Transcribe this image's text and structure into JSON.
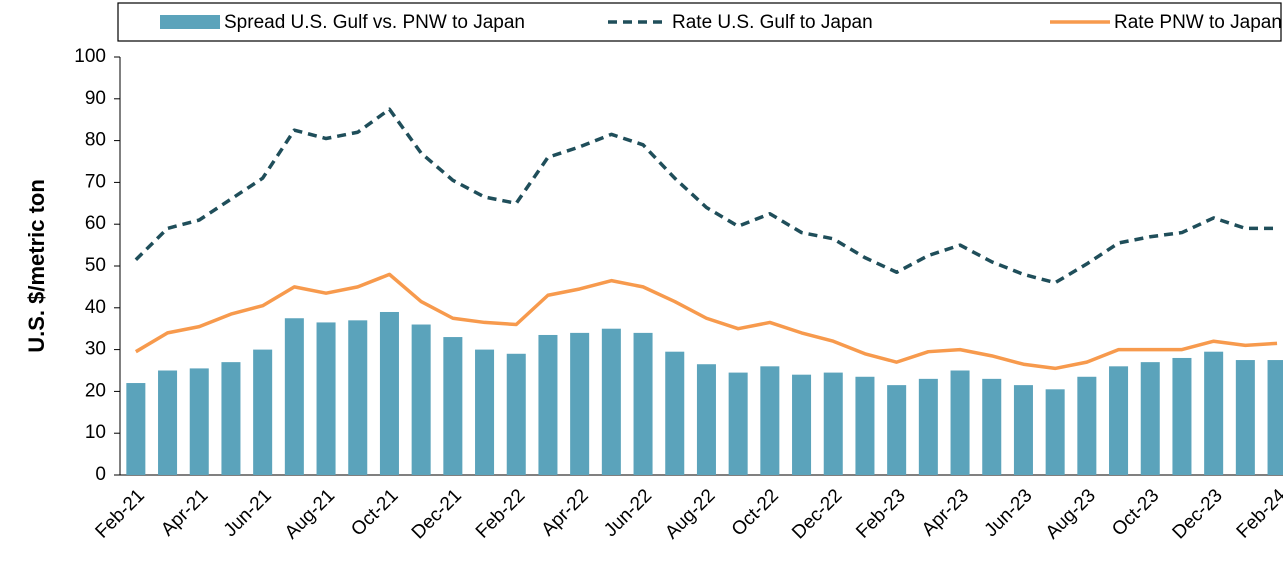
{
  "chart_data": {
    "type": "bar-line",
    "y_label": "U.S. $/metric ton",
    "categories": [
      "Feb-21",
      null,
      "Apr-21",
      null,
      "Jun-21",
      null,
      "Aug-21",
      null,
      "Oct-21",
      null,
      "Dec-21",
      null,
      "Feb-22",
      null,
      "Apr-22",
      null,
      "Jun-22",
      null,
      "Aug-22",
      null,
      "Oct-22",
      null,
      "Dec-22",
      null,
      "Feb-23",
      null,
      "Apr-23",
      null,
      "Jun-23",
      null,
      "Aug-23",
      null,
      "Oct-23",
      null,
      "Dec-23",
      null,
      "Feb-24"
    ],
    "series": [
      {
        "name": "Spread U.S. Gulf vs. PNW to Japan",
        "kind": "bar",
        "color": "#5ba3bb",
        "values": [
          22,
          25,
          25.5,
          27,
          30,
          37.5,
          36.5,
          37,
          39,
          36,
          33,
          30,
          29,
          33.5,
          34,
          35,
          34,
          29.5,
          26.5,
          24.5,
          26,
          24,
          24.5,
          23.5,
          21.5,
          23,
          25,
          23,
          21.5,
          20.5,
          23.5,
          26,
          27,
          28,
          29.5,
          27.5,
          27.5
        ]
      },
      {
        "name": "Rate U.S. Gulf to Japan",
        "kind": "line",
        "dashed": true,
        "color": "#1f4e5a",
        "values": [
          51.5,
          59,
          61,
          66,
          71,
          82.5,
          80.5,
          82,
          87.5,
          77,
          70.5,
          66.5,
          65,
          76,
          78.5,
          81.5,
          79,
          71,
          64,
          59.5,
          62.5,
          58,
          56.5,
          52,
          48.5,
          52.5,
          55,
          51,
          48,
          46,
          50.5,
          55.5,
          57,
          58,
          61.5,
          59,
          59
        ]
      },
      {
        "name": "Rate PNW to Japan",
        "kind": "line",
        "dashed": false,
        "color": "#f79a4d",
        "values": [
          29.5,
          34,
          35.5,
          38.5,
          40.5,
          45,
          43.5,
          45,
          48,
          41.5,
          37.5,
          36.5,
          36,
          43,
          44.5,
          46.5,
          45,
          41.5,
          37.5,
          35,
          36.5,
          34,
          32,
          29,
          27,
          29.5,
          30,
          28.5,
          26.5,
          25.5,
          27,
          30,
          30,
          30,
          32,
          31,
          31.5
        ]
      }
    ],
    "ylim": [
      0,
      100
    ],
    "yticks": [
      0,
      10,
      20,
      30,
      40,
      50,
      60,
      70,
      80,
      90,
      100
    ]
  }
}
